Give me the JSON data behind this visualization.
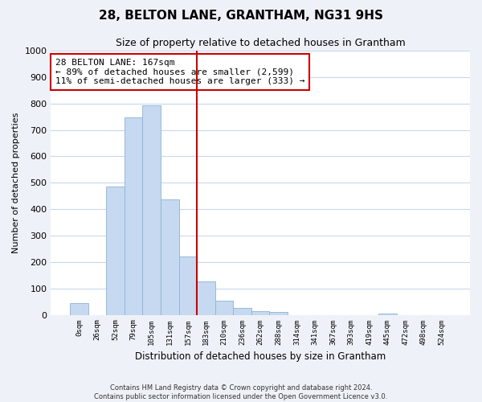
{
  "title": "28, BELTON LANE, GRANTHAM, NG31 9HS",
  "subtitle": "Size of property relative to detached houses in Grantham",
  "xlabel": "Distribution of detached houses by size in Grantham",
  "ylabel": "Number of detached properties",
  "bin_labels": [
    "0sqm",
    "26sqm",
    "52sqm",
    "79sqm",
    "105sqm",
    "131sqm",
    "157sqm",
    "183sqm",
    "210sqm",
    "236sqm",
    "262sqm",
    "288sqm",
    "314sqm",
    "341sqm",
    "367sqm",
    "393sqm",
    "419sqm",
    "445sqm",
    "472sqm",
    "498sqm",
    "524sqm"
  ],
  "bar_values": [
    43,
    0,
    486,
    748,
    793,
    438,
    220,
    125,
    52,
    27,
    13,
    10,
    0,
    0,
    0,
    0,
    0,
    5,
    0,
    0,
    0
  ],
  "bar_color": "#c6d9f0",
  "bar_edge_color": "#8ab4d4",
  "vline_x": 6.5,
  "vline_color": "#cc0000",
  "annotation_title": "28 BELTON LANE: 167sqm",
  "annotation_line1": "← 89% of detached houses are smaller (2,599)",
  "annotation_line2": "11% of semi-detached houses are larger (333) →",
  "annotation_box_edge": "#cc0000",
  "ylim": [
    0,
    1000
  ],
  "yticks": [
    0,
    100,
    200,
    300,
    400,
    500,
    600,
    700,
    800,
    900,
    1000
  ],
  "footer_line1": "Contains HM Land Registry data © Crown copyright and database right 2024.",
  "footer_line2": "Contains public sector information licensed under the Open Government Licence v3.0.",
  "bg_color": "#eef2f8",
  "plot_bg_color": "#ffffff",
  "grid_color": "#c8d8ec"
}
